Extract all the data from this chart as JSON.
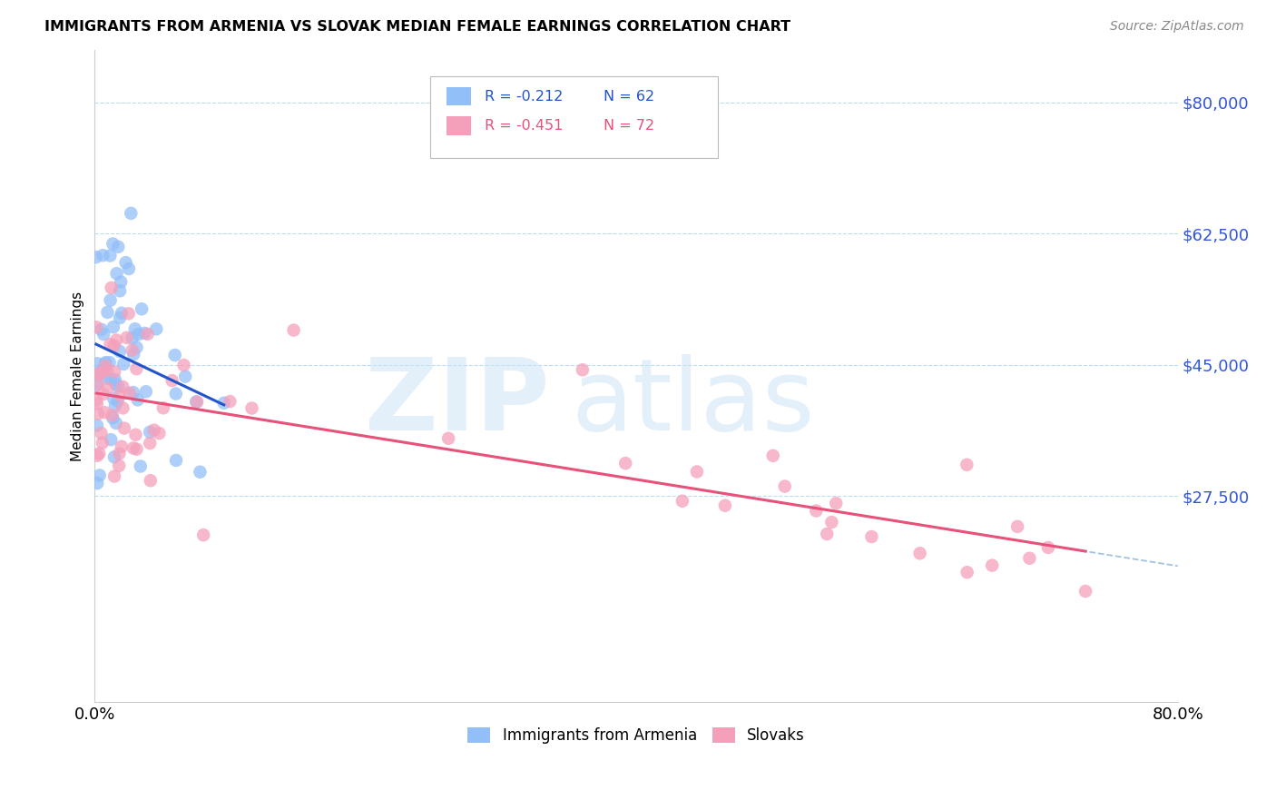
{
  "title": "IMMIGRANTS FROM ARMENIA VS SLOVAK MEDIAN FEMALE EARNINGS CORRELATION CHART",
  "source": "Source: ZipAtlas.com",
  "ylabel": "Median Female Earnings",
  "xlim": [
    0.0,
    0.8
  ],
  "ylim": [
    0,
    87000
  ],
  "ytick_vals": [
    27500,
    45000,
    62500,
    80000
  ],
  "legend1_r": "R = -0.212",
  "legend1_n": "N = 62",
  "legend2_r": "R = -0.451",
  "legend2_n": "N = 72",
  "color_armenia": "#93bff8",
  "color_slovak": "#f5a0bb",
  "color_line_armenia": "#2255cc",
  "color_line_slovak": "#e8517a",
  "color_dash": "#99bbdd",
  "color_ytick": "#3355dd",
  "color_grid": "#bbddee"
}
